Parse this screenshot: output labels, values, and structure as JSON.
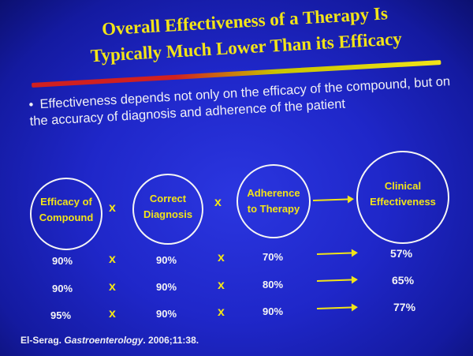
{
  "slide": {
    "title_line1": "Overall Effectiveness of a Therapy Is",
    "title_line2": "Typically Much Lower Than its Efficacy",
    "bullet_symbol": "•",
    "bullet_text": "Effectiveness depends not only on the efficacy of the compound, but on the accuracy of diagnosis and adherence of the patient",
    "colors": {
      "background": "#1f27c9",
      "title": "#f2e418",
      "underline_start": "#d02020",
      "text": "#f5f5f5"
    }
  },
  "factors": {
    "efficacy_line1": "Efficacy of",
    "efficacy_line2": "Compound",
    "diagnosis_line1": "Correct",
    "diagnosis_line2": "Diagnosis",
    "adherence_line1": "Adherence",
    "adherence_line2": "to Therapy",
    "effectiveness_line1": "Clinical",
    "effectiveness_line2": "Effectiveness",
    "operator": "x"
  },
  "rows": [
    {
      "efficacy": "90%",
      "diagnosis": "90%",
      "adherence": "70%",
      "effectiveness": "57%"
    },
    {
      "efficacy": "90%",
      "diagnosis": "90%",
      "adherence": "80%",
      "effectiveness": "65%"
    },
    {
      "efficacy": "95%",
      "diagnosis": "90%",
      "adherence": "90%",
      "effectiveness": "77%"
    }
  ],
  "citation": {
    "authors": "El-Serag. ",
    "journal": "Gastroenterology",
    "details": ". 2006;11:38."
  }
}
